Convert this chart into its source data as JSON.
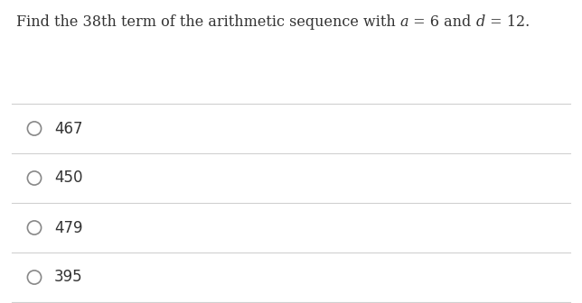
{
  "question_parts": [
    {
      "text": "Find the 38th term of the arithmetic sequence with ",
      "italic": false
    },
    {
      "text": "a",
      "italic": true
    },
    {
      "text": " = 6 and ",
      "italic": false
    },
    {
      "text": "d",
      "italic": true
    },
    {
      "text": " = 12.",
      "italic": false
    }
  ],
  "choices": [
    "467",
    "450",
    "479",
    "395"
  ],
  "background_color": "#ffffff",
  "text_color": "#333333",
  "line_color": "#d0d0d0",
  "circle_edge_color": "#888888",
  "question_fontsize": 11.5,
  "choice_fontsize": 12,
  "figsize": [
    6.44,
    3.36
  ],
  "dpi": 100
}
